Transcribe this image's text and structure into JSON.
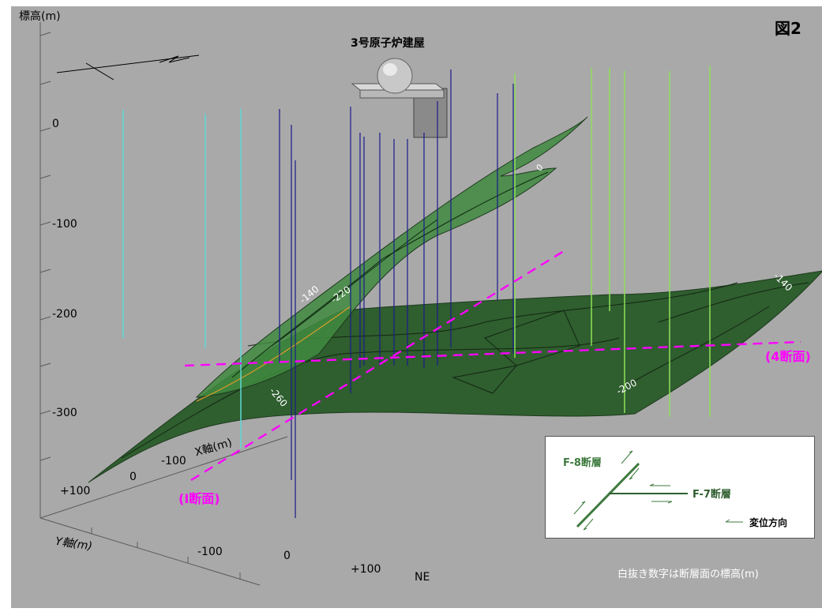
{
  "header": {
    "figure_label": "図2",
    "building_label": "3号原子炉建屋",
    "z_axis_label": "標高(m)"
  },
  "z_ticks": [
    "0",
    "-100",
    "-200",
    "-300"
  ],
  "x_axis": {
    "label": "X軸(m)",
    "ticks": [
      "-100",
      "0",
      "+100"
    ]
  },
  "y_axis": {
    "label": "Y軸(m)",
    "ticks": [
      "-100",
      "0",
      "+100"
    ]
  },
  "north_label": "NE",
  "contour_labels": [
    "0",
    "-140",
    "-220",
    "-260",
    "-140",
    "-200"
  ],
  "sections": {
    "section_4": "(4断面)",
    "section_1": "(I断面)"
  },
  "legend": {
    "f8_label": "F-8断層",
    "f7_label": "F-7断層",
    "displacement_label": "変位方向"
  },
  "footnote": "白抜き数字は断層面の標高(m)",
  "colors": {
    "plot_bg": "#a9a9a9",
    "surface": "#2f5e2f",
    "fault_f8": "#3f8a3f",
    "borehole_blue": "#1a1a8c",
    "borehole_cyan": "#5fd8d8",
    "borehole_green": "#8fe05a",
    "section_line": "#ff00ff"
  }
}
